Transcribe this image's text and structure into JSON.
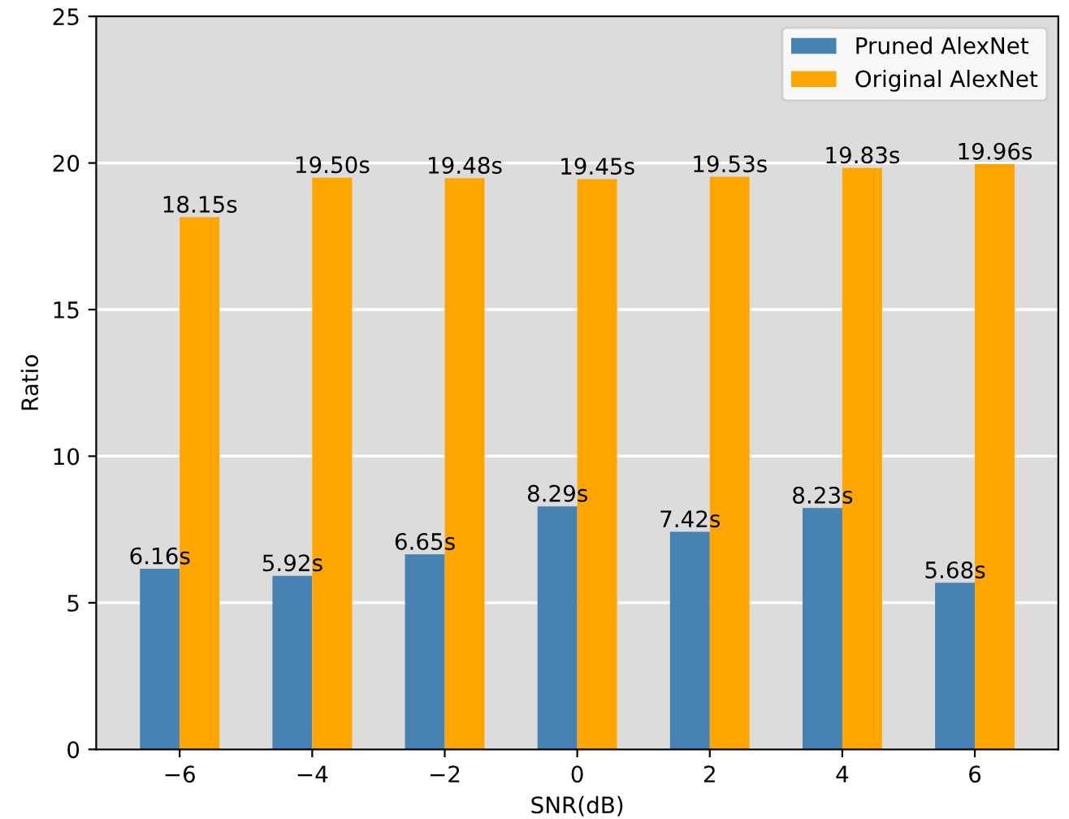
{
  "chart_data": {
    "type": "bar",
    "xlabel": "SNR(dB)",
    "ylabel": "Ratio",
    "categories": [
      "−6",
      "−4",
      "−2",
      "0",
      "2",
      "4",
      "6"
    ],
    "series": [
      {
        "name": "Pruned AlexNet",
        "color": "#4682b4",
        "values": [
          6.16,
          5.92,
          6.65,
          8.29,
          7.42,
          8.23,
          5.68
        ],
        "value_labels": [
          "6.16s",
          "5.92s",
          "6.65s",
          "8.29s",
          "7.42s",
          "8.23s",
          "5.68s"
        ]
      },
      {
        "name": "Original AlexNet",
        "color": "#ffa500",
        "values": [
          18.15,
          19.5,
          19.48,
          19.45,
          19.53,
          19.83,
          19.96
        ],
        "value_labels": [
          "18.15s",
          "19.50s",
          "19.48s",
          "19.45s",
          "19.53s",
          "19.83s",
          "19.96s"
        ]
      }
    ],
    "ylim": [
      0,
      25
    ],
    "yticks": [
      0,
      5,
      10,
      15,
      20,
      25
    ],
    "grid": "y",
    "legend": "top right"
  }
}
